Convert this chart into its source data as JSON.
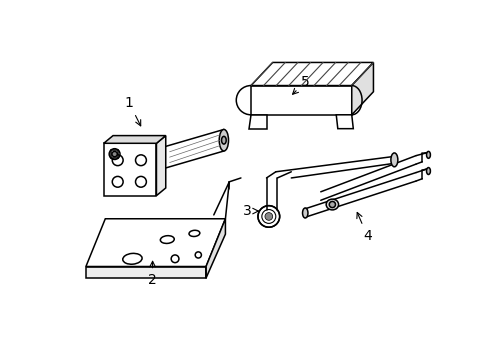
{
  "background_color": "#ffffff",
  "line_color": "#000000",
  "fig_width": 4.89,
  "fig_height": 3.6,
  "dpi": 100,
  "label_fontsize": 10
}
